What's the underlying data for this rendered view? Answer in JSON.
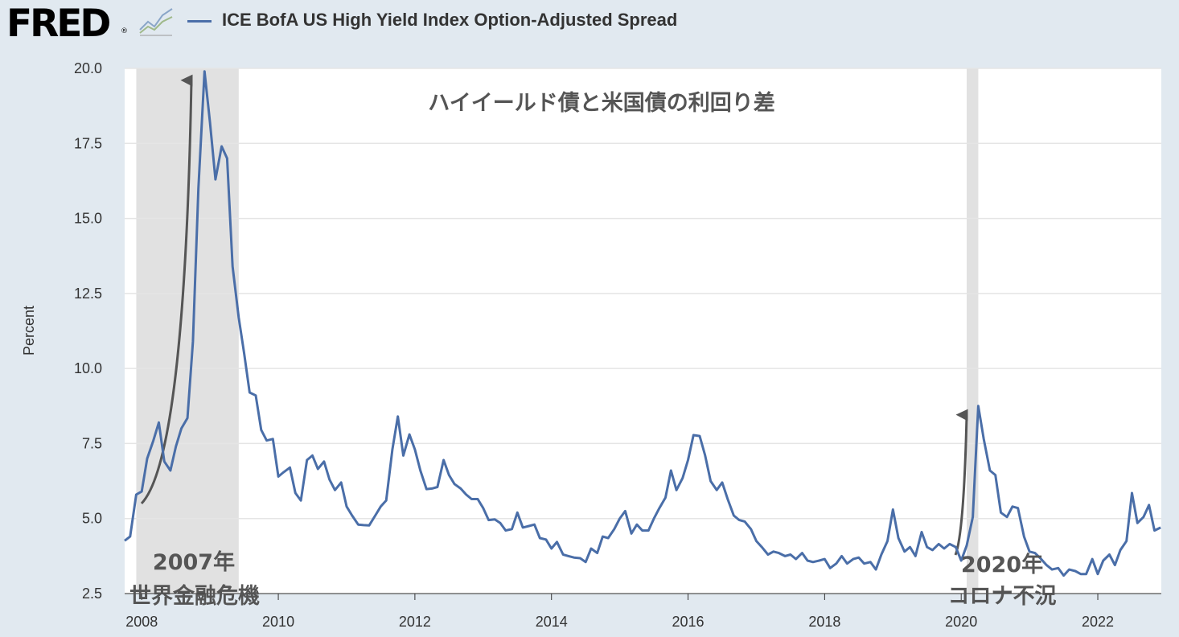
{
  "header": {
    "logo_text": "FRED",
    "logo_reg": "®",
    "legend_label": "ICE BofA US High Yield Index Option-Adjusted Spread",
    "logo_icon": "line-chart-icon"
  },
  "colors": {
    "series": "#4a6ea8",
    "recession": "#e1e1e1",
    "grid": "#e5e5e5",
    "background": "#e1e9f0",
    "arrow": "#555555"
  },
  "chart_data": {
    "type": "line",
    "ylabel": "Percent",
    "ylim": [
      2.5,
      20.0
    ],
    "xlim": [
      2007.75,
      2022.93
    ],
    "yticks": [
      "2.5",
      "5.0",
      "7.5",
      "10.0",
      "12.5",
      "15.0",
      "17.5",
      "20.0"
    ],
    "xticks": [
      "2008",
      "2010",
      "2012",
      "2014",
      "2016",
      "2018",
      "2020",
      "2022"
    ],
    "grid": "horizontal",
    "legend_position": "top",
    "recessions": [
      [
        2007.92,
        2009.42
      ],
      [
        2020.08,
        2020.25
      ]
    ],
    "annotations": [
      {
        "id": "title",
        "text": "ハイイールド債と米国債の利回り差"
      },
      {
        "id": "gfc-year",
        "text": "2007年"
      },
      {
        "id": "gfc-label",
        "text": "世界金融危機"
      },
      {
        "id": "covid-year",
        "text": "2020年"
      },
      {
        "id": "covid-label",
        "text": "コロナ不況"
      }
    ],
    "series": [
      {
        "name": "ICE BofA US High Yield Index Option-Adjusted Spread",
        "x": [
          2007.75,
          2007.83,
          2007.92,
          2008.0,
          2008.08,
          2008.17,
          2008.25,
          2008.33,
          2008.42,
          2008.5,
          2008.58,
          2008.67,
          2008.75,
          2008.83,
          2008.92,
          2009.0,
          2009.08,
          2009.17,
          2009.25,
          2009.33,
          2009.42,
          2009.5,
          2009.58,
          2009.67,
          2009.75,
          2009.83,
          2009.92,
          2010.0,
          2010.08,
          2010.17,
          2010.25,
          2010.33,
          2010.42,
          2010.5,
          2010.58,
          2010.67,
          2010.75,
          2010.83,
          2010.92,
          2011.0,
          2011.08,
          2011.17,
          2011.25,
          2011.33,
          2011.42,
          2011.5,
          2011.58,
          2011.67,
          2011.75,
          2011.83,
          2011.92,
          2012.0,
          2012.08,
          2012.17,
          2012.25,
          2012.33,
          2012.42,
          2012.5,
          2012.58,
          2012.67,
          2012.75,
          2012.83,
          2012.92,
          2013.0,
          2013.08,
          2013.17,
          2013.25,
          2013.33,
          2013.42,
          2013.5,
          2013.58,
          2013.67,
          2013.75,
          2013.83,
          2013.92,
          2014.0,
          2014.08,
          2014.17,
          2014.25,
          2014.33,
          2014.42,
          2014.5,
          2014.58,
          2014.67,
          2014.75,
          2014.83,
          2014.92,
          2015.0,
          2015.08,
          2015.17,
          2015.25,
          2015.33,
          2015.42,
          2015.5,
          2015.58,
          2015.67,
          2015.75,
          2015.83,
          2015.92,
          2016.0,
          2016.08,
          2016.17,
          2016.25,
          2016.33,
          2016.42,
          2016.5,
          2016.58,
          2016.67,
          2016.75,
          2016.83,
          2016.92,
          2017.0,
          2017.08,
          2017.17,
          2017.25,
          2017.33,
          2017.42,
          2017.5,
          2017.58,
          2017.67,
          2017.75,
          2017.83,
          2017.92,
          2018.0,
          2018.08,
          2018.17,
          2018.25,
          2018.33,
          2018.42,
          2018.5,
          2018.58,
          2018.67,
          2018.75,
          2018.83,
          2018.92,
          2019.0,
          2019.08,
          2019.17,
          2019.25,
          2019.33,
          2019.42,
          2019.5,
          2019.58,
          2019.67,
          2019.75,
          2019.83,
          2019.92,
          2020.0,
          2020.08,
          2020.17,
          2020.25,
          2020.33,
          2020.42,
          2020.5,
          2020.58,
          2020.67,
          2020.75,
          2020.83,
          2020.92,
          2021.0,
          2021.08,
          2021.17,
          2021.25,
          2021.33,
          2021.42,
          2021.5,
          2021.58,
          2021.67,
          2021.75,
          2021.83,
          2021.92,
          2022.0,
          2022.08,
          2022.17,
          2022.25,
          2022.33,
          2022.42,
          2022.5,
          2022.58,
          2022.67,
          2022.75,
          2022.83,
          2022.92
        ],
        "values": [
          4.26,
          4.4,
          5.8,
          5.9,
          7.0,
          7.6,
          8.2,
          6.9,
          6.6,
          7.4,
          8.0,
          8.35,
          10.9,
          16.0,
          19.9,
          18.2,
          16.3,
          17.4,
          17.0,
          13.4,
          11.7,
          10.5,
          9.2,
          9.1,
          7.95,
          7.6,
          7.65,
          6.4,
          6.55,
          6.7,
          5.85,
          5.6,
          6.95,
          7.1,
          6.65,
          6.9,
          6.3,
          5.95,
          6.2,
          5.4,
          5.1,
          4.8,
          4.78,
          4.77,
          5.1,
          5.4,
          5.6,
          7.3,
          8.4,
          7.1,
          7.8,
          7.3,
          6.6,
          5.98,
          6.0,
          6.05,
          6.95,
          6.45,
          6.15,
          6.0,
          5.8,
          5.65,
          5.65,
          5.35,
          4.95,
          4.97,
          4.85,
          4.6,
          4.65,
          5.2,
          4.7,
          4.75,
          4.8,
          4.35,
          4.3,
          4.0,
          4.22,
          3.8,
          3.75,
          3.7,
          3.68,
          3.55,
          4.0,
          3.85,
          4.4,
          4.35,
          4.65,
          5.0,
          5.25,
          4.5,
          4.8,
          4.6,
          4.6,
          5.0,
          5.35,
          5.7,
          6.6,
          5.95,
          6.35,
          6.95,
          7.78,
          7.75,
          7.1,
          6.25,
          5.95,
          6.2,
          5.65,
          5.1,
          4.95,
          4.9,
          4.65,
          4.25,
          4.05,
          3.8,
          3.9,
          3.85,
          3.75,
          3.8,
          3.65,
          3.85,
          3.6,
          3.55,
          3.6,
          3.65,
          3.35,
          3.5,
          3.75,
          3.5,
          3.65,
          3.7,
          3.5,
          3.55,
          3.3,
          3.8,
          4.25,
          5.3,
          4.35,
          3.9,
          4.05,
          3.75,
          4.55,
          4.05,
          3.95,
          4.15,
          4.0,
          4.15,
          4.05,
          3.6,
          4.1,
          5.05,
          8.75,
          7.65,
          6.6,
          6.45,
          5.2,
          5.05,
          5.4,
          5.35,
          4.4,
          3.9,
          3.85,
          3.65,
          3.45,
          3.3,
          3.35,
          3.1,
          3.3,
          3.25,
          3.15,
          3.15,
          3.65,
          3.15,
          3.6,
          3.8,
          3.45,
          3.95,
          4.25,
          5.85,
          4.85,
          5.05,
          5.45,
          4.6,
          4.7
        ]
      }
    ]
  }
}
